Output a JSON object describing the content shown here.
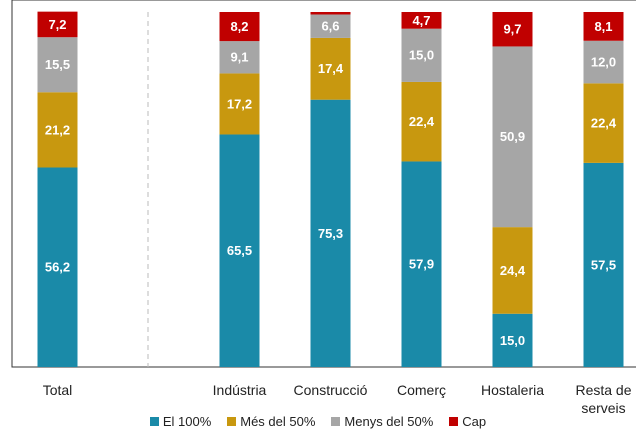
{
  "chart_data": {
    "type": "stacked_bar",
    "categories": [
      "Total",
      null,
      "Indústria",
      "Construcció",
      "Comerç",
      "Hostaleria",
      "Resta de serveis"
    ],
    "ylim": [
      0,
      100
    ],
    "series": [
      {
        "name": "El 100%",
        "color": "#1a8aa8",
        "values": [
          56.2,
          null,
          65.5,
          75.3,
          57.9,
          15.0,
          57.5
        ],
        "value_labels": [
          "56,2",
          null,
          "65,5",
          "75,3",
          "57,9",
          "15,0",
          "57,5"
        ]
      },
      {
        "name": "Més del 50%",
        "color": "#c8980f",
        "values": [
          21.2,
          null,
          17.2,
          17.4,
          22.4,
          24.4,
          22.4
        ],
        "value_labels": [
          "21,2",
          null,
          "17,2",
          "17,4",
          "22,4",
          "24,4",
          "22,4"
        ]
      },
      {
        "name": "Menys del 50%",
        "color": "#a6a6a6",
        "values": [
          15.5,
          null,
          9.1,
          6.6,
          15.0,
          50.9,
          12.0
        ],
        "value_labels": [
          "15,5",
          null,
          "9,1",
          "6,6",
          "15,0",
          "50,9",
          "12,0"
        ]
      },
      {
        "name": "Cap",
        "color": "#c00000",
        "values": [
          7.2,
          null,
          8.2,
          0.7,
          4.7,
          9.7,
          8.1
        ],
        "value_labels": [
          "7,2",
          null,
          "8,2",
          null,
          "4,7",
          "9,7",
          "8,1"
        ]
      }
    ]
  }
}
